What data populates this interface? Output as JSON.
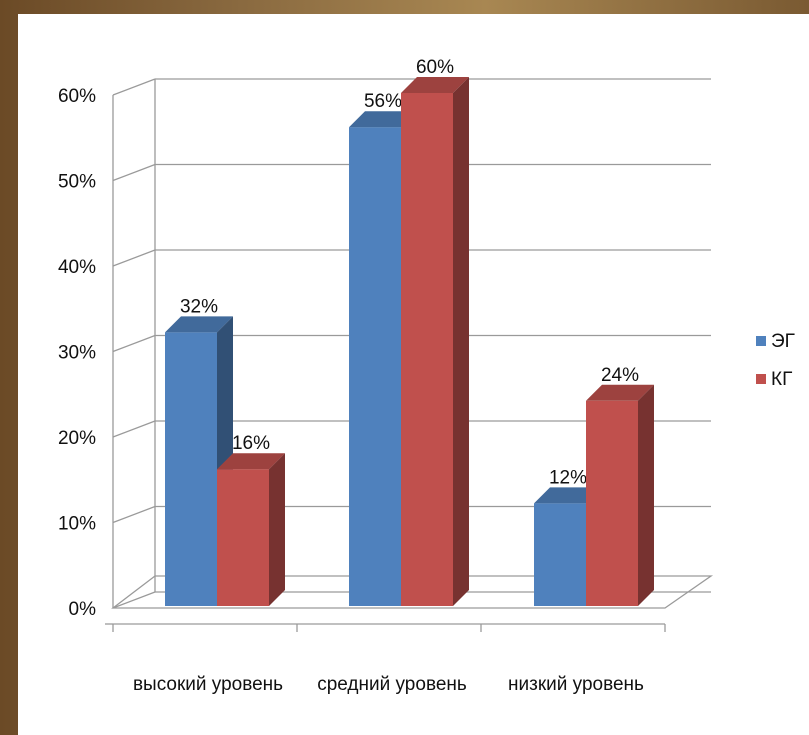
{
  "chart_data": {
    "type": "bar",
    "title": "",
    "xlabel": "",
    "ylabel": "",
    "categories": [
      "высокий уровень",
      "средний уровень",
      "низкий уровень"
    ],
    "series": [
      {
        "name": "ЭГ",
        "values": [
          32,
          56,
          12
        ],
        "color": "#4f81bd"
      },
      {
        "name": "КГ",
        "values": [
          16,
          60,
          24
        ],
        "color": "#c0504d"
      }
    ],
    "ylim": [
      0,
      60
    ],
    "yticks": [
      0,
      10,
      20,
      30,
      40,
      50,
      60
    ],
    "ytick_labels": [
      "0%",
      "10%",
      "20%",
      "30%",
      "40%",
      "50%",
      "60%"
    ],
    "data_labels": [
      [
        "32%",
        "56%",
        "12%"
      ],
      [
        "16%",
        "60%",
        "24%"
      ]
    ],
    "legend_position": "right",
    "grid": true,
    "three_d": true
  }
}
